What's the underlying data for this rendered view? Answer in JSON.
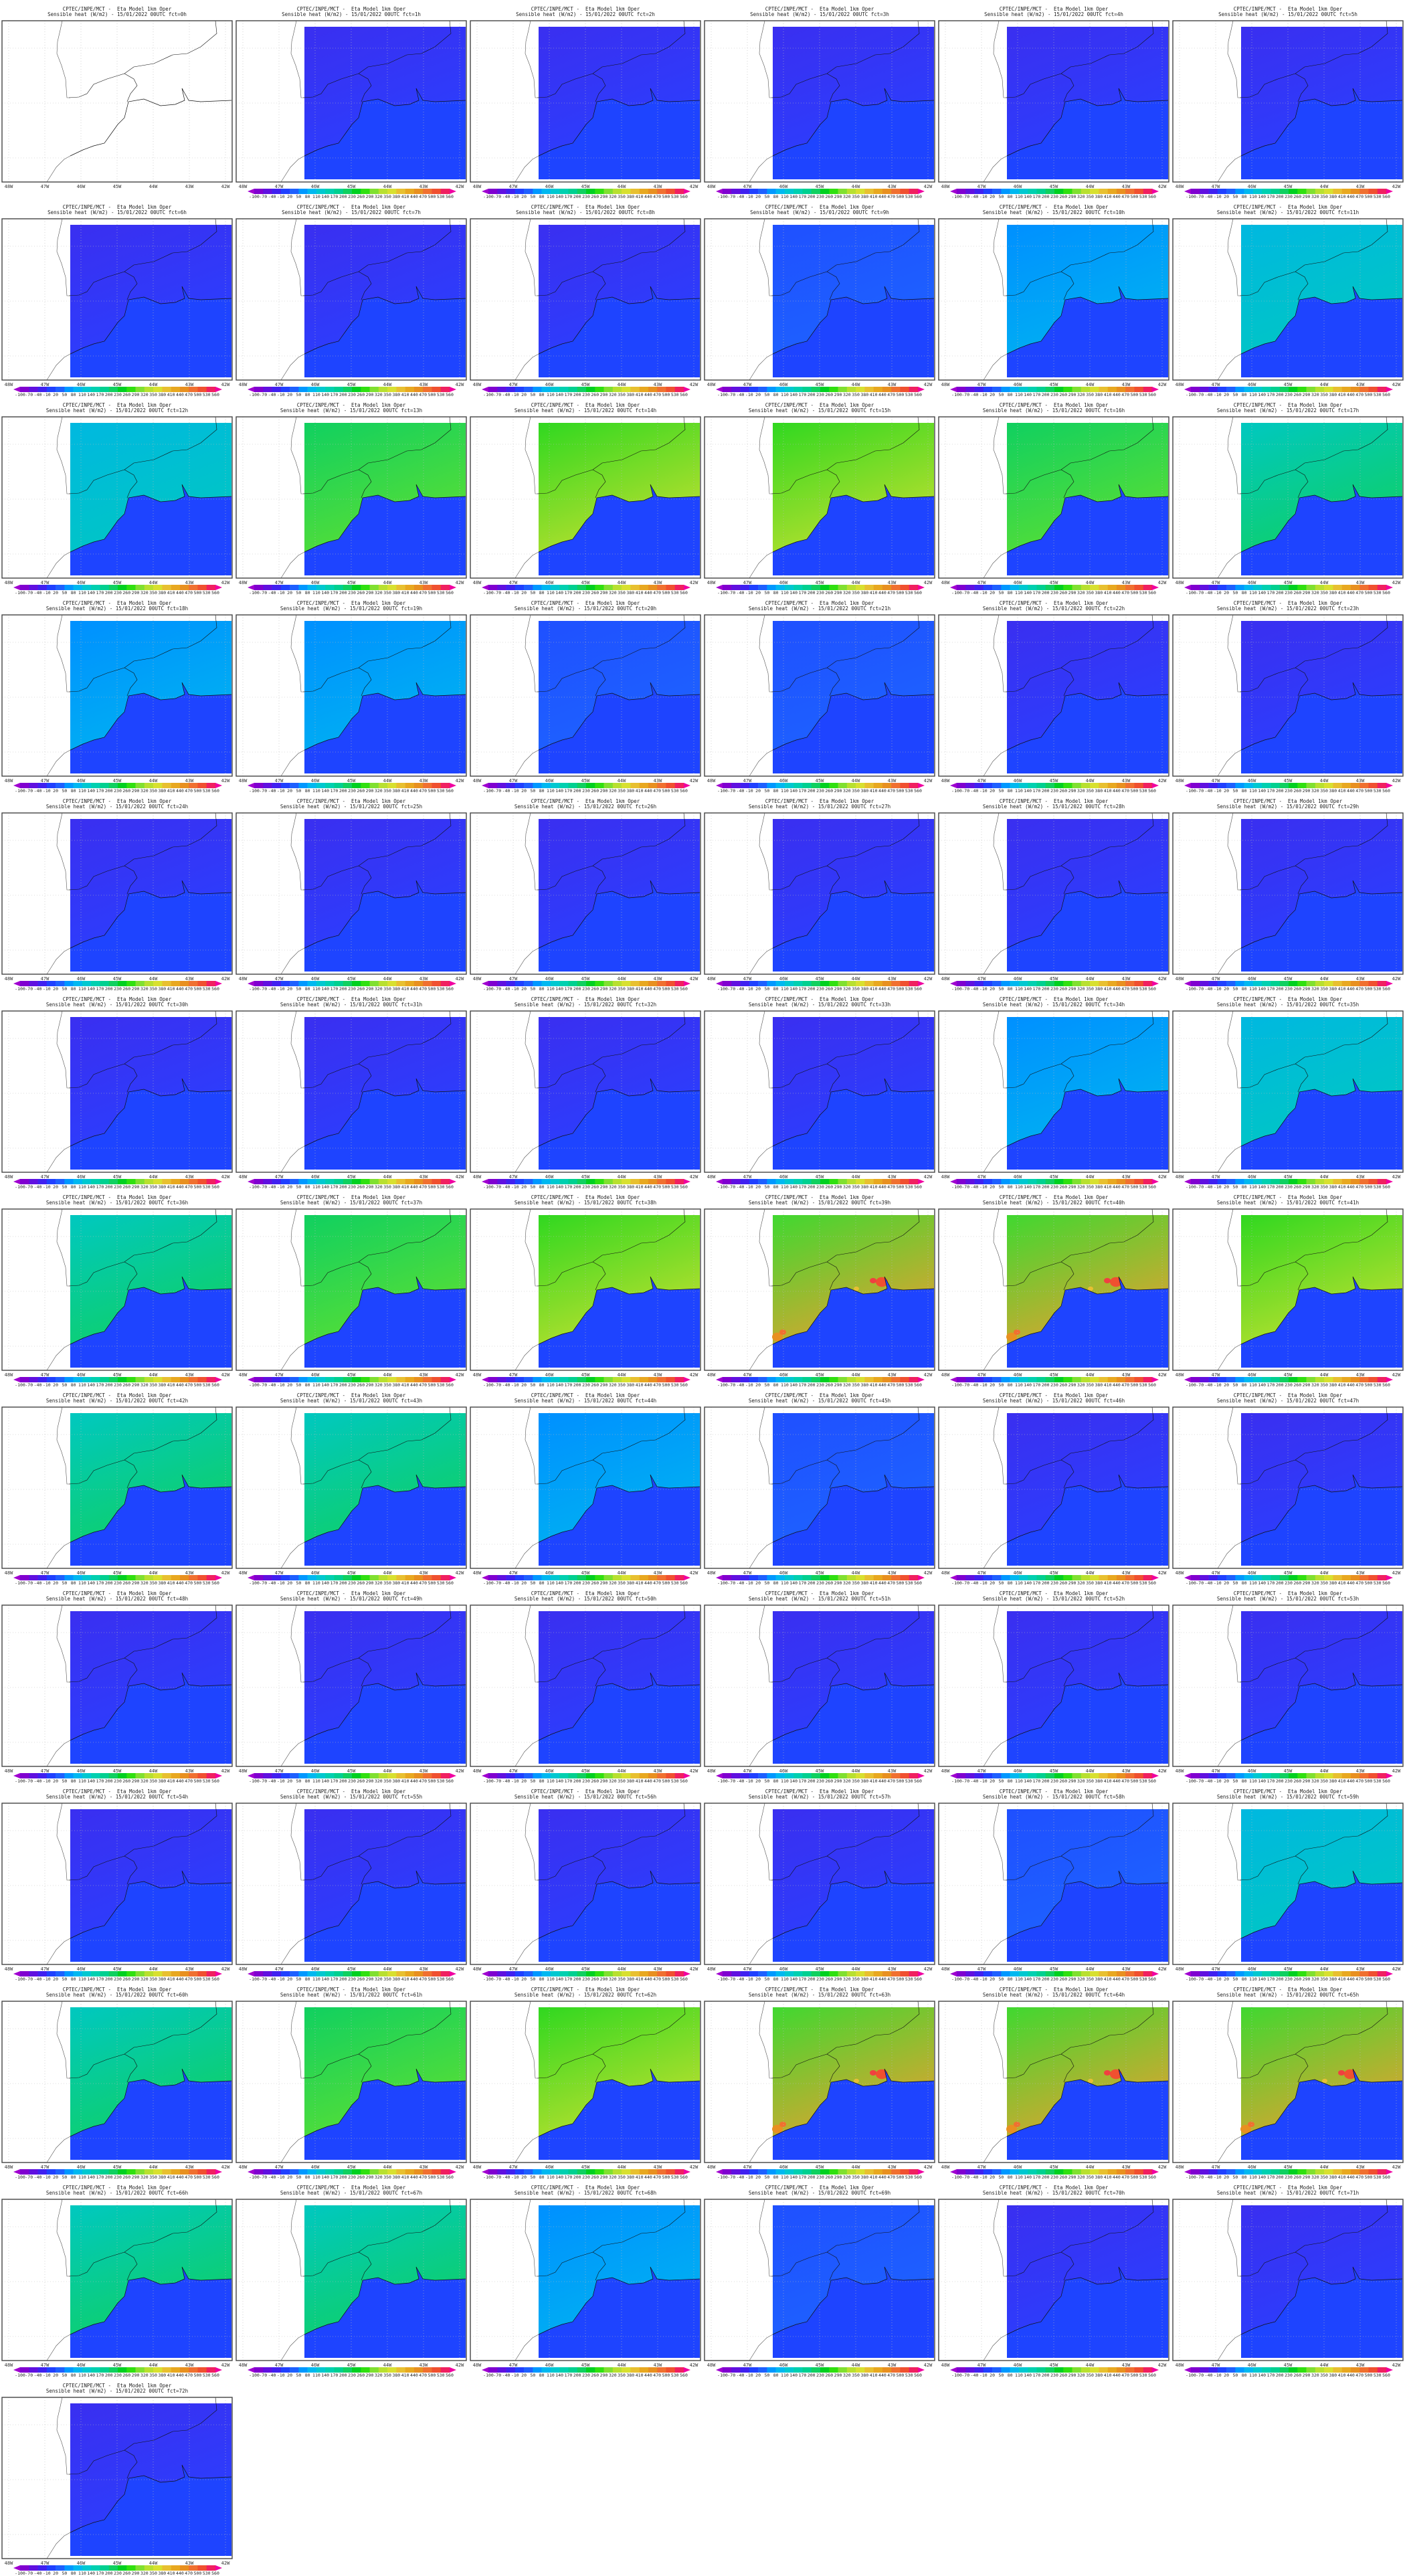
{
  "title_line1": "CPTEC/INPE/MCT -  Eta Model 1km Oper",
  "variable": "Sensible heat (W/m2)",
  "init": "15/01/2022 00UTC",
  "lon_labels": [
    "48W",
    "47W",
    "46W",
    "45W",
    "44W",
    "43W",
    "42W"
  ],
  "colorbar": {
    "labels": [
      "-100",
      "-70",
      "-40",
      "-10",
      "20",
      "50",
      "80",
      "110",
      "140",
      "170",
      "200",
      "230",
      "260",
      "290",
      "320",
      "350",
      "380",
      "410",
      "440",
      "470",
      "500",
      "530",
      "560"
    ],
    "colors": [
      "#8000d0",
      "#6010e0",
      "#4020f0",
      "#2040ff",
      "#1e60ff",
      "#0098ff",
      "#00b8f0",
      "#00c8d0",
      "#00d0b0",
      "#00d090",
      "#10d060",
      "#00d020",
      "#30e010",
      "#80e030",
      "#b8e030",
      "#d8e030",
      "#e8c030",
      "#e8a820",
      "#e89020",
      "#f07030",
      "#f05030",
      "#f02060"
    ],
    "under_color": "#a000d0",
    "over_color": "#f000a0"
  },
  "ocean_color": "#1e44ff",
  "palettes": {
    "P": [
      "#3a2ff0",
      "#2a40ff"
    ],
    "B": [
      "#1f50ff",
      "#1e64ff"
    ],
    "LB": [
      "#0090ff",
      "#00b4f0"
    ],
    "C": [
      "#00b8e0",
      "#00c8c0"
    ],
    "CG": [
      "#00c8c0",
      "#10d060"
    ],
    "G": [
      "#10d060",
      "#60e030"
    ],
    "GY": [
      "#30d820",
      "#c8e030"
    ],
    "YR": [
      "#40d830",
      "#e8a030"
    ]
  },
  "panels": [
    {
      "subtitle": "Sensible heat (W/m2) - 15/01/2022 00UTC fct=0h",
      "field": "none"
    },
    {
      "subtitle": "Sensible heat (W/m2) - 15/01/2022 00UTC fct=1h",
      "field": "P"
    },
    {
      "subtitle": "Sensible heat (W/m2) - 15/01/2022 00UTC fct=2h",
      "field": "P"
    },
    {
      "subtitle": "Sensible heat (W/m2) - 15/01/2022 00UTC fct=3h",
      "field": "P"
    },
    {
      "subtitle": "Sensible heat (W/m2) - 15/01/2022 00UTC fct=4h",
      "field": "P"
    },
    {
      "subtitle": "Sensible heat (W/m2) - 15/01/2022 00UTC fct=5h",
      "field": "P"
    },
    {
      "subtitle": "Sensible heat (W/m2) - 15/01/2022 00UTC fct=6h",
      "field": "P"
    },
    {
      "subtitle": "Sensible heat (W/m2) - 15/01/2022 00UTC fct=7h",
      "field": "P"
    },
    {
      "subtitle": "Sensible heat (W/m2) - 15/01/2022 00UTC fct=8h",
      "field": "P"
    },
    {
      "subtitle": "Sensible heat (W/m2) - 15/01/2022 00UTC fct=9h",
      "field": "B"
    },
    {
      "subtitle": "Sensible heat (W/m2) - 15/01/2022 00UTC fct=10h",
      "field": "LB"
    },
    {
      "subtitle": "Sensible heat (W/m2) - 15/01/2022 00UTC fct=11h",
      "field": "C"
    },
    {
      "subtitle": "Sensible heat (W/m2) - 15/01/2022 00UTC fct=12h",
      "field": "C"
    },
    {
      "subtitle": "Sensible heat (W/m2) - 15/01/2022 00UTC fct=13h",
      "field": "G"
    },
    {
      "subtitle": "Sensible heat (W/m2) - 15/01/2022 00UTC fct=14h",
      "field": "GY"
    },
    {
      "subtitle": "Sensible heat (W/m2) - 15/01/2022 00UTC fct=15h",
      "field": "GY"
    },
    {
      "subtitle": "Sensible heat (W/m2) - 15/01/2022 00UTC fct=16h",
      "field": "G"
    },
    {
      "subtitle": "Sensible heat (W/m2) - 15/01/2022 00UTC fct=17h",
      "field": "CG"
    },
    {
      "subtitle": "Sensible heat (W/m2) - 15/01/2022 00UTC fct=18h",
      "field": "LB"
    },
    {
      "subtitle": "Sensible heat (W/m2) - 15/01/2022 00UTC fct=19h",
      "field": "LB"
    },
    {
      "subtitle": "Sensible heat (W/m2) - 15/01/2022 00UTC fct=20h",
      "field": "B"
    },
    {
      "subtitle": "Sensible heat (W/m2) - 15/01/2022 00UTC fct=21h",
      "field": "B"
    },
    {
      "subtitle": "Sensible heat (W/m2) - 15/01/2022 00UTC fct=22h",
      "field": "P"
    },
    {
      "subtitle": "Sensible heat (W/m2) - 15/01/2022 00UTC fct=23h",
      "field": "P"
    },
    {
      "subtitle": "Sensible heat (W/m2) - 15/01/2022 00UTC fct=24h",
      "field": "P"
    },
    {
      "subtitle": "Sensible heat (W/m2) - 15/01/2022 00UTC fct=25h",
      "field": "P"
    },
    {
      "subtitle": "Sensible heat (W/m2) - 15/01/2022 00UTC fct=26h",
      "field": "P"
    },
    {
      "subtitle": "Sensible heat (W/m2) - 15/01/2022 00UTC fct=27h",
      "field": "P"
    },
    {
      "subtitle": "Sensible heat (W/m2) - 15/01/2022 00UTC fct=28h",
      "field": "P"
    },
    {
      "subtitle": "Sensible heat (W/m2) - 15/01/2022 00UTC fct=29h",
      "field": "P"
    },
    {
      "subtitle": "Sensible heat (W/m2) - 15/01/2022 00UTC fct=30h",
      "field": "P"
    },
    {
      "subtitle": "Sensible heat (W/m2) - 15/01/2022 00UTC fct=31h",
      "field": "P"
    },
    {
      "subtitle": "Sensible heat (W/m2) - 15/01/2022 00UTC fct=32h",
      "field": "P"
    },
    {
      "subtitle": "Sensible heat (W/m2) - 15/01/2022 00UTC fct=33h",
      "field": "P"
    },
    {
      "subtitle": "Sensible heat (W/m2) - 15/01/2022 00UTC fct=34h",
      "field": "LB"
    },
    {
      "subtitle": "Sensible heat (W/m2) - 15/01/2022 00UTC fct=35h",
      "field": "C"
    },
    {
      "subtitle": "Sensible heat (W/m2) - 15/01/2022 00UTC fct=36h",
      "field": "CG"
    },
    {
      "subtitle": "Sensible heat (W/m2) - 15/01/2022 00UTC fct=37h",
      "field": "G"
    },
    {
      "subtitle": "Sensible heat (W/m2) - 15/01/2022 00UTC fct=38h",
      "field": "GY"
    },
    {
      "subtitle": "Sensible heat (W/m2) - 15/01/2022 00UTC fct=39h",
      "field": "YR"
    },
    {
      "subtitle": "Sensible heat (W/m2) - 15/01/2022 00UTC fct=40h",
      "field": "YR"
    },
    {
      "subtitle": "Sensible heat (W/m2) - 15/01/2022 00UTC fct=41h",
      "field": "GY"
    },
    {
      "subtitle": "Sensible heat (W/m2) - 15/01/2022 00UTC fct=42h",
      "field": "CG"
    },
    {
      "subtitle": "Sensible heat (W/m2) - 15/01/2022 00UTC fct=43h",
      "field": "CG"
    },
    {
      "subtitle": "Sensible heat (W/m2) - 15/01/2022 00UTC fct=44h",
      "field": "LB"
    },
    {
      "subtitle": "Sensible heat (W/m2) - 15/01/2022 00UTC fct=45h",
      "field": "B"
    },
    {
      "subtitle": "Sensible heat (W/m2) - 15/01/2022 00UTC fct=46h",
      "field": "P"
    },
    {
      "subtitle": "Sensible heat (W/m2) - 15/01/2022 00UTC fct=47h",
      "field": "P"
    },
    {
      "subtitle": "Sensible heat (W/m2) - 15/01/2022 00UTC fct=48h",
      "field": "P"
    },
    {
      "subtitle": "Sensible heat (W/m2) - 15/01/2022 00UTC fct=49h",
      "field": "P"
    },
    {
      "subtitle": "Sensible heat (W/m2) - 15/01/2022 00UTC fct=50h",
      "field": "P"
    },
    {
      "subtitle": "Sensible heat (W/m2) - 15/01/2022 00UTC fct=51h",
      "field": "P"
    },
    {
      "subtitle": "Sensible heat (W/m2) - 15/01/2022 00UTC fct=52h",
      "field": "P"
    },
    {
      "subtitle": "Sensible heat (W/m2) - 15/01/2022 00UTC fct=53h",
      "field": "P"
    },
    {
      "subtitle": "Sensible heat (W/m2) - 15/01/2022 00UTC fct=54h",
      "field": "P"
    },
    {
      "subtitle": "Sensible heat (W/m2) - 15/01/2022 00UTC fct=55h",
      "field": "P"
    },
    {
      "subtitle": "Sensible heat (W/m2) - 15/01/2022 00UTC fct=56h",
      "field": "P"
    },
    {
      "subtitle": "Sensible heat (W/m2) - 15/01/2022 00UTC fct=57h",
      "field": "P"
    },
    {
      "subtitle": "Sensible heat (W/m2) - 15/01/2022 00UTC fct=58h",
      "field": "B"
    },
    {
      "subtitle": "Sensible heat (W/m2) - 15/01/2022 00UTC fct=59h",
      "field": "C"
    },
    {
      "subtitle": "Sensible heat (W/m2) - 15/01/2022 00UTC fct=60h",
      "field": "CG"
    },
    {
      "subtitle": "Sensible heat (W/m2) - 15/01/2022 00UTC fct=61h",
      "field": "G"
    },
    {
      "subtitle": "Sensible heat (W/m2) - 15/01/2022 00UTC fct=62h",
      "field": "GY"
    },
    {
      "subtitle": "Sensible heat (W/m2) - 15/01/2022 00UTC fct=63h",
      "field": "YR"
    },
    {
      "subtitle": "Sensible heat (W/m2) - 15/01/2022 00UTC fct=64h",
      "field": "YR"
    },
    {
      "subtitle": "Sensible heat (W/m2) - 15/01/2022 00UTC fct=65h",
      "field": "YR"
    },
    {
      "subtitle": "Sensible heat (W/m2) - 15/01/2022 00UTC fct=66h",
      "field": "CG"
    },
    {
      "subtitle": "Sensible heat (W/m2) - 15/01/2022 00UTC fct=67h",
      "field": "CG"
    },
    {
      "subtitle": "Sensible heat (W/m2) - 15/01/2022 00UTC fct=68h",
      "field": "LB"
    },
    {
      "subtitle": "Sensible heat (W/m2) - 15/01/2022 00UTC fct=69h",
      "field": "B"
    },
    {
      "subtitle": "Sensible heat (W/m2) - 15/01/2022 00UTC fct=70h",
      "field": "P"
    },
    {
      "subtitle": "Sensible heat (W/m2) - 15/01/2022 00UTC fct=71h",
      "field": "P"
    },
    {
      "subtitle": "Sensible heat (W/m2) - 15/01/2022 00UTC fct=72h",
      "field": "P"
    }
  ]
}
